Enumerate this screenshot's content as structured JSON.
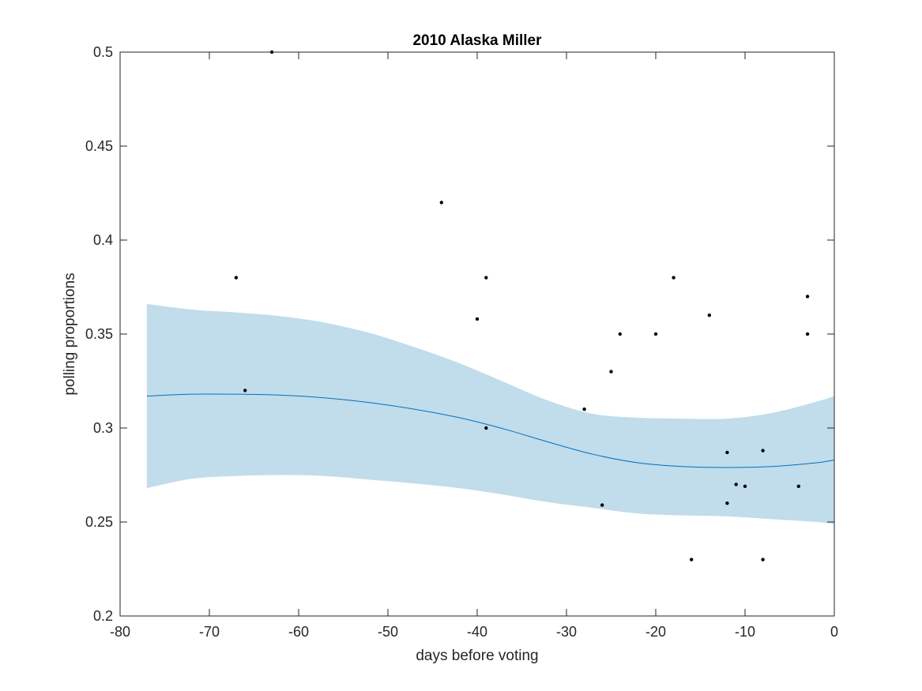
{
  "chart_data": {
    "type": "scatter",
    "title": "2010 Alaska Miller",
    "xlabel": "days before voting",
    "ylabel": "polling proportions",
    "xlim": [
      -80,
      0
    ],
    "ylim": [
      0.2,
      0.5
    ],
    "xticks": [
      -80,
      -70,
      -60,
      -50,
      -40,
      -30,
      -20,
      -10,
      0
    ],
    "xtick_labels": [
      "-80",
      "-70",
      "-60",
      "-50",
      "-40",
      "-30",
      "-20",
      "-10",
      "0"
    ],
    "yticks": [
      0.2,
      0.25,
      0.3,
      0.35,
      0.4,
      0.45,
      0.5
    ],
    "ytick_labels": [
      "0.2",
      "0.25",
      "0.3",
      "0.35",
      "0.4",
      "0.45",
      "0.5"
    ],
    "grid": false,
    "points": {
      "x": [
        -67,
        -66,
        -63,
        -44,
        -40,
        -39,
        -39,
        -28,
        -26,
        -25,
        -24,
        -20,
        -18,
        -16,
        -14,
        -12,
        -12,
        -11,
        -10,
        -8,
        -8,
        -4,
        -3,
        -3
      ],
      "y": [
        0.38,
        0.32,
        0.5,
        0.42,
        0.358,
        0.38,
        0.3,
        0.31,
        0.259,
        0.33,
        0.35,
        0.35,
        0.38,
        0.23,
        0.36,
        0.287,
        0.26,
        0.27,
        0.269,
        0.288,
        0.23,
        0.269,
        0.37,
        0.35
      ]
    },
    "trend": {
      "x": [
        -77,
        -72,
        -67,
        -62,
        -57,
        -52,
        -47,
        -42,
        -37,
        -32,
        -27,
        -22,
        -17,
        -12,
        -7,
        -2,
        0
      ],
      "mean": [
        0.317,
        0.318,
        0.318,
        0.3175,
        0.316,
        0.3135,
        0.31,
        0.3055,
        0.2995,
        0.2925,
        0.286,
        0.2815,
        0.2795,
        0.279,
        0.2795,
        0.2815,
        0.283
      ],
      "upper": [
        0.366,
        0.363,
        0.3615,
        0.3595,
        0.356,
        0.3505,
        0.343,
        0.3345,
        0.3245,
        0.3145,
        0.3075,
        0.3055,
        0.305,
        0.305,
        0.308,
        0.314,
        0.317
      ],
      "lower": [
        0.268,
        0.273,
        0.2745,
        0.275,
        0.2745,
        0.2725,
        0.2705,
        0.268,
        0.2645,
        0.2605,
        0.2575,
        0.2545,
        0.2535,
        0.253,
        0.2515,
        0.25,
        0.249
      ]
    },
    "colors": {
      "band": "#c1dceb",
      "line": "#0072bd",
      "points": "#000000"
    }
  }
}
